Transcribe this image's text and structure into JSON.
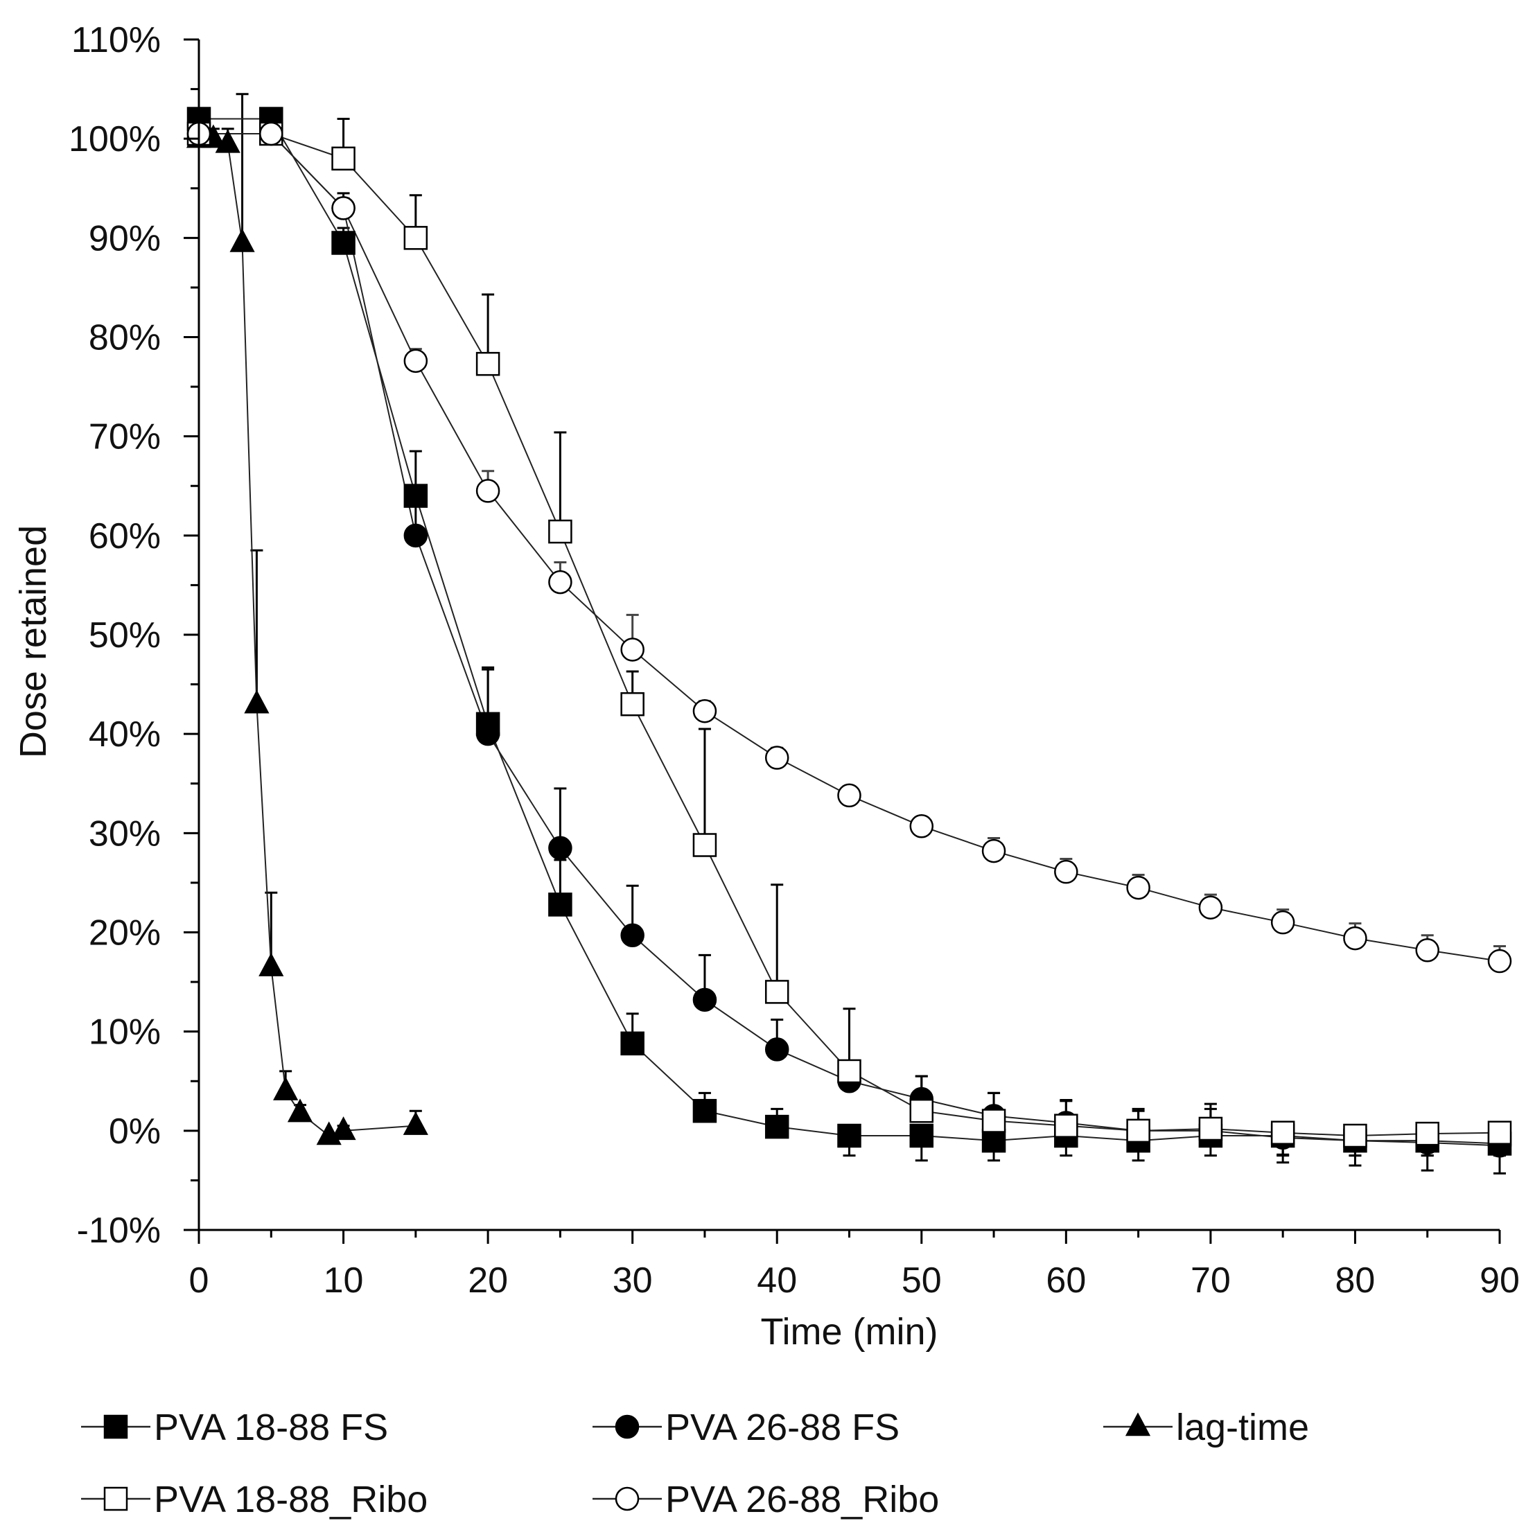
{
  "chart_data": {
    "type": "line",
    "title": "",
    "xlabel": "Time (min)",
    "ylabel": "Dose retained",
    "xlim": [
      0,
      90
    ],
    "ylim": [
      -10,
      110
    ],
    "x_ticks": [
      0,
      10,
      20,
      30,
      40,
      50,
      60,
      70,
      80,
      90
    ],
    "x_tick_labels": [
      "0",
      "10",
      "20",
      "30",
      "40",
      "50",
      "60",
      "70",
      "80",
      "90"
    ],
    "y_ticks": [
      -10,
      0,
      10,
      20,
      30,
      40,
      50,
      60,
      70,
      80,
      90,
      100,
      110
    ],
    "y_tick_labels": [
      "-10%",
      "0%",
      "10%",
      "20%",
      "30%",
      "40%",
      "50%",
      "60%",
      "70%",
      "80%",
      "90%",
      "100%",
      "110%"
    ],
    "grid": false,
    "legend_position": "bottom",
    "series": [
      {
        "name": "PVA 18-88 FS",
        "marker": "square-filled",
        "x": [
          0,
          5,
          10,
          15,
          20,
          25,
          30,
          35,
          40,
          45,
          50,
          55,
          60,
          65,
          70,
          75,
          80,
          85,
          90
        ],
        "y": [
          102,
          102,
          89.5,
          64,
          41,
          22.8,
          8.8,
          2,
          0.4,
          -0.5,
          -0.5,
          -1,
          -0.5,
          -1,
          -0.5,
          -0.5,
          -1,
          -1,
          -1.3
        ],
        "err": [
          0,
          0,
          1.5,
          4.5,
          5.5,
          4.5,
          3,
          1.8,
          1.8,
          2,
          2.5,
          2,
          2,
          2,
          2,
          2,
          1.5,
          1.5,
          1.2
        ]
      },
      {
        "name": "PVA 26-88 FS",
        "marker": "circle-filled",
        "x": [
          0,
          5,
          10,
          15,
          20,
          25,
          30,
          35,
          40,
          45,
          50,
          55,
          60,
          65,
          70,
          75,
          80,
          85,
          90
        ],
        "y": [
          100.5,
          100.5,
          93,
          60,
          40,
          28.5,
          19.7,
          13.2,
          8.2,
          5,
          3.2,
          1.5,
          0.8,
          0,
          0,
          -0.7,
          -1,
          -1.2,
          -1.5
        ],
        "err": [
          1,
          1,
          1.5,
          4,
          6.7,
          6,
          5,
          4.5,
          3,
          2,
          2.3,
          2.3,
          2.3,
          2,
          2.2,
          2.5,
          2.5,
          2.8,
          2.8
        ]
      },
      {
        "name": "lag-time",
        "marker": "triangle-filled",
        "x": [
          0,
          1,
          2,
          3,
          4,
          5,
          6,
          7,
          9,
          10,
          15
        ],
        "y": [
          100,
          100,
          99.5,
          89.5,
          43,
          16.5,
          4,
          1.8,
          -0.5,
          0,
          0.5
        ],
        "err": [
          1,
          1,
          1.5,
          15,
          15.5,
          7.5,
          2,
          0.8,
          0.5,
          0.5,
          1.5
        ]
      },
      {
        "name": "PVA 18-88_Ribo",
        "marker": "square-open",
        "x": [
          0,
          5,
          10,
          15,
          20,
          25,
          30,
          35,
          40,
          45,
          50,
          55,
          60,
          65,
          70,
          75,
          80,
          85,
          90
        ],
        "y": [
          100.5,
          100.5,
          98,
          90,
          77.3,
          60.4,
          43,
          28.8,
          14,
          6,
          2,
          1,
          0.5,
          0,
          0.2,
          -0.2,
          -0.5,
          -0.3,
          -0.2
        ],
        "err": [
          1,
          1,
          4,
          4.3,
          7,
          10,
          3.3,
          11.7,
          10.8,
          6.3,
          3.5,
          2.8,
          2.5,
          2.2,
          2.5,
          2.2,
          2,
          2.2,
          2
        ]
      },
      {
        "name": "PVA 26-88_Ribo",
        "marker": "circle-open",
        "x": [
          0,
          5,
          10,
          15,
          20,
          25,
          30,
          35,
          40,
          45,
          50,
          55,
          60,
          65,
          70,
          75,
          80,
          85,
          90
        ],
        "y": [
          100.5,
          100.5,
          93,
          77.6,
          64.5,
          55.3,
          48.5,
          42.3,
          37.6,
          33.8,
          30.7,
          28.2,
          26.1,
          24.5,
          22.5,
          21,
          19.4,
          18.2,
          17.1
        ],
        "err": [
          0.8,
          1,
          1,
          1.2,
          2,
          2,
          3.5,
          1,
          1,
          0.5,
          0.5,
          1.3,
          1.3,
          1.3,
          1.3,
          1.3,
          1.5,
          1.5,
          1.5
        ]
      }
    ]
  }
}
